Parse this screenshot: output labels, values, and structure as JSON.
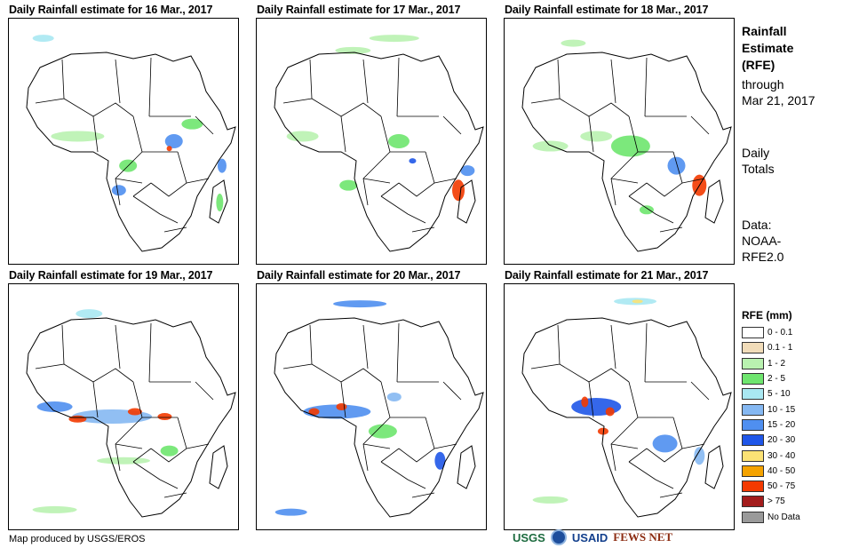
{
  "panels": [
    {
      "title": "Daily Rainfall estimate for 16 Mar., 2017",
      "color_key": "p16"
    },
    {
      "title": "Daily Rainfall estimate for 17 Mar., 2017",
      "color_key": "p17"
    },
    {
      "title": "Daily Rainfall estimate for 18 Mar., 2017",
      "color_key": "p18"
    },
    {
      "title": "Daily Rainfall estimate for 19 Mar., 2017",
      "color_key": "p19"
    },
    {
      "title": "Daily Rainfall estimate for 20 Mar., 2017",
      "color_key": "p20"
    },
    {
      "title": "Daily Rainfall estimate for 21 Mar., 2017",
      "color_key": "p21"
    }
  ],
  "sidebar": {
    "title_line1": "Rainfall",
    "title_line2": "Estimate",
    "title_line3": "(RFE)",
    "through": "through",
    "date": "Mar 21, 2017",
    "daily1": "Daily",
    "daily2": "Totals",
    "data1": "Data:",
    "data2": "NOAA-",
    "data3": "RFE2.0"
  },
  "legend": {
    "title": "RFE (mm)",
    "items": [
      {
        "label": "0 - 0.1",
        "color": "#ffffff"
      },
      {
        "label": "0.1 - 1",
        "color": "#f1dcb9"
      },
      {
        "label": "1 - 2",
        "color": "#b9f2b0"
      },
      {
        "label": "2 - 5",
        "color": "#6ee56e"
      },
      {
        "label": "5 - 10",
        "color": "#a9e8f2"
      },
      {
        "label": "10 - 15",
        "color": "#85b8f2"
      },
      {
        "label": "15 - 20",
        "color": "#4f8ff0"
      },
      {
        "label": "20 - 30",
        "color": "#1f56e8"
      },
      {
        "label": "30 - 40",
        "color": "#fbe275"
      },
      {
        "label": "40 - 50",
        "color": "#f5a300"
      },
      {
        "label": "50 - 75",
        "color": "#f33a00"
      },
      {
        "label": "> 75",
        "color": "#a31c1c"
      },
      {
        "label": "No Data",
        "color": "#9a9a9a"
      }
    ]
  },
  "footer": {
    "credit": "Map produced by USGS/EROS",
    "logos": [
      "USGS",
      "NOAA",
      "USAID",
      "FEWS NET"
    ]
  }
}
